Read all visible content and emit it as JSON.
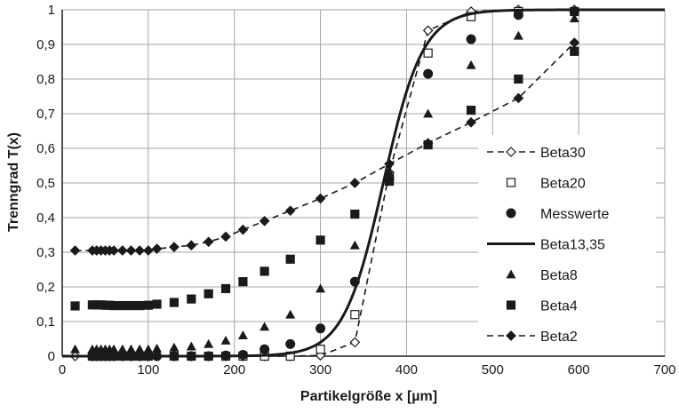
{
  "chart_data": {
    "type": "scatter",
    "xlabel": "Partikelgröße x [µm]",
    "ylabel": "Trenngrad T(x)",
    "xlim": [
      0,
      700
    ],
    "ylim": [
      0,
      1
    ],
    "x_ticks": [
      "0",
      "100",
      "200",
      "300",
      "400",
      "500",
      "600",
      "700"
    ],
    "y_ticks": [
      "0",
      "0,1",
      "0,2",
      "0,3",
      "0,4",
      "0,5",
      "0,6",
      "0,7",
      "0,8",
      "0,9",
      "1"
    ],
    "grid": true,
    "legend_position": "right",
    "series": [
      {
        "name": "Beta30",
        "style": "dashed-line-open-diamond",
        "x": [
          15,
          35,
          40,
          45,
          50,
          55,
          60,
          70,
          80,
          90,
          100,
          110,
          130,
          150,
          170,
          190,
          210,
          235,
          265,
          300,
          340,
          380,
          425,
          475,
          530,
          595
        ],
        "y": [
          0,
          0,
          0,
          0,
          0,
          0,
          0,
          0,
          0,
          0,
          0,
          0,
          0,
          0,
          0,
          0,
          0,
          0,
          0,
          0.002,
          0.04,
          0.53,
          0.94,
          0.995,
          1.0,
          1.0
        ]
      },
      {
        "name": "Beta20",
        "style": "open-square",
        "x": [
          35,
          40,
          45,
          50,
          55,
          60,
          70,
          80,
          90,
          100,
          130,
          150,
          170,
          190,
          210,
          235,
          265,
          300,
          340,
          380,
          425,
          475,
          530,
          595
        ],
        "y": [
          0,
          0,
          0,
          0,
          0,
          0,
          0,
          0,
          0,
          0,
          0,
          0,
          0,
          0,
          0,
          0,
          0,
          0.02,
          0.12,
          0.52,
          0.875,
          0.98,
          0.995,
          0.995
        ]
      },
      {
        "name": "Messwerte",
        "style": "filled-circle",
        "x": [
          35,
          40,
          45,
          50,
          55,
          60,
          70,
          80,
          90,
          100,
          110,
          130,
          150,
          170,
          190,
          210,
          235,
          265,
          300,
          340,
          380,
          425,
          475,
          530,
          595
        ],
        "y": [
          0,
          0,
          0,
          0,
          0,
          0,
          0,
          0,
          0,
          0,
          0,
          0,
          0,
          0,
          0.002,
          0.004,
          0.02,
          0.035,
          0.08,
          0.215,
          0.51,
          0.815,
          0.915,
          0.985,
          0.995
        ]
      },
      {
        "name": "Beta13,35",
        "style": "solid-line",
        "model": "beta13.35"
      },
      {
        "name": "Beta8",
        "style": "filled-triangle",
        "x": [
          15,
          35,
          40,
          45,
          50,
          55,
          60,
          70,
          80,
          90,
          100,
          110,
          130,
          150,
          170,
          190,
          210,
          235,
          265,
          300,
          340,
          380,
          425,
          475,
          530,
          595
        ],
        "y": [
          0.02,
          0.02,
          0.02,
          0.02,
          0.02,
          0.02,
          0.02,
          0.02,
          0.02,
          0.02,
          0.02,
          0.022,
          0.025,
          0.028,
          0.035,
          0.045,
          0.06,
          0.085,
          0.12,
          0.195,
          0.32,
          0.53,
          0.7,
          0.84,
          0.925,
          0.975
        ]
      },
      {
        "name": "Beta4",
        "style": "filled-square",
        "x": [
          15,
          35,
          40,
          45,
          50,
          55,
          60,
          70,
          80,
          90,
          100,
          110,
          130,
          150,
          170,
          190,
          210,
          235,
          265,
          300,
          340,
          380,
          425,
          475,
          530,
          595
        ],
        "y": [
          0.145,
          0.148,
          0.148,
          0.148,
          0.147,
          0.147,
          0.146,
          0.146,
          0.146,
          0.146,
          0.147,
          0.15,
          0.155,
          0.165,
          0.18,
          0.195,
          0.215,
          0.245,
          0.28,
          0.335,
          0.41,
          0.505,
          0.61,
          0.71,
          0.8,
          0.88
        ]
      },
      {
        "name": "Beta2",
        "style": "dashed-line-filled-diamond",
        "x": [
          15,
          35,
          40,
          45,
          50,
          55,
          60,
          70,
          80,
          90,
          100,
          110,
          130,
          150,
          170,
          190,
          210,
          235,
          265,
          300,
          340,
          380,
          425,
          475,
          530,
          595
        ],
        "y": [
          0.305,
          0.305,
          0.305,
          0.305,
          0.305,
          0.305,
          0.305,
          0.305,
          0.305,
          0.305,
          0.305,
          0.31,
          0.315,
          0.32,
          0.33,
          0.345,
          0.365,
          0.39,
          0.42,
          0.455,
          0.5,
          0.555,
          0.615,
          0.675,
          0.745,
          0.905
        ]
      }
    ]
  },
  "colors": {
    "ink": "#1a1a1a",
    "grid": "#a6a6a6",
    "background": "#ffffff"
  }
}
